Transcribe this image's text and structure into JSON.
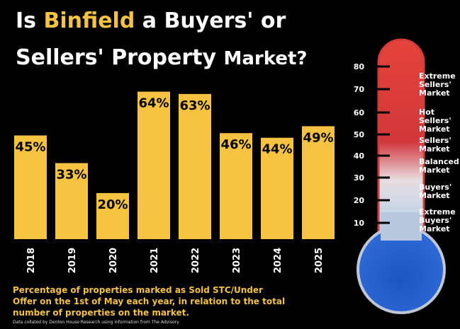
{
  "title": {
    "line1_pre": "Is ",
    "line1_highlight": "Binfield",
    "line1_post": " a Buyers' or",
    "line2": "Sellers' Property ",
    "line2_end": "Market?"
  },
  "caption": "Percentage of properties marked as Sold STC/Under Offer on the 1st of May each year, in relation to the total number of properties on the market.",
  "source": "Data collated by Denton House Research using information from The Advisory",
  "colors": {
    "bar": "#f5c242",
    "background": "#000000",
    "thermo_top": "#e03a34",
    "thermo_bottom": "#1f5cc8"
  },
  "chart_data": {
    "type": "bar",
    "categories": [
      "2018",
      "2019",
      "2020",
      "2021",
      "2022",
      "2023",
      "2024",
      "2025"
    ],
    "values": [
      45,
      33,
      20,
      64,
      63,
      46,
      44,
      49
    ],
    "labels": [
      "45%",
      "33%",
      "20%",
      "64%",
      "63%",
      "46%",
      "44%",
      "49%"
    ],
    "ylim": [
      0,
      70
    ]
  },
  "thermometer": {
    "ticks": [
      "80",
      "70",
      "60",
      "50",
      "40",
      "30",
      "20",
      "10"
    ],
    "zones": [
      [
        "Extreme",
        "Sellers'",
        "Market"
      ],
      [
        "Hot",
        "Sellers'",
        "Market"
      ],
      [
        "Sellers'",
        "Market"
      ],
      [
        "Balanced",
        "Market"
      ],
      [
        "Buyers'",
        "Market"
      ],
      [
        "Extreme",
        "Buyers'",
        "Market"
      ]
    ]
  }
}
